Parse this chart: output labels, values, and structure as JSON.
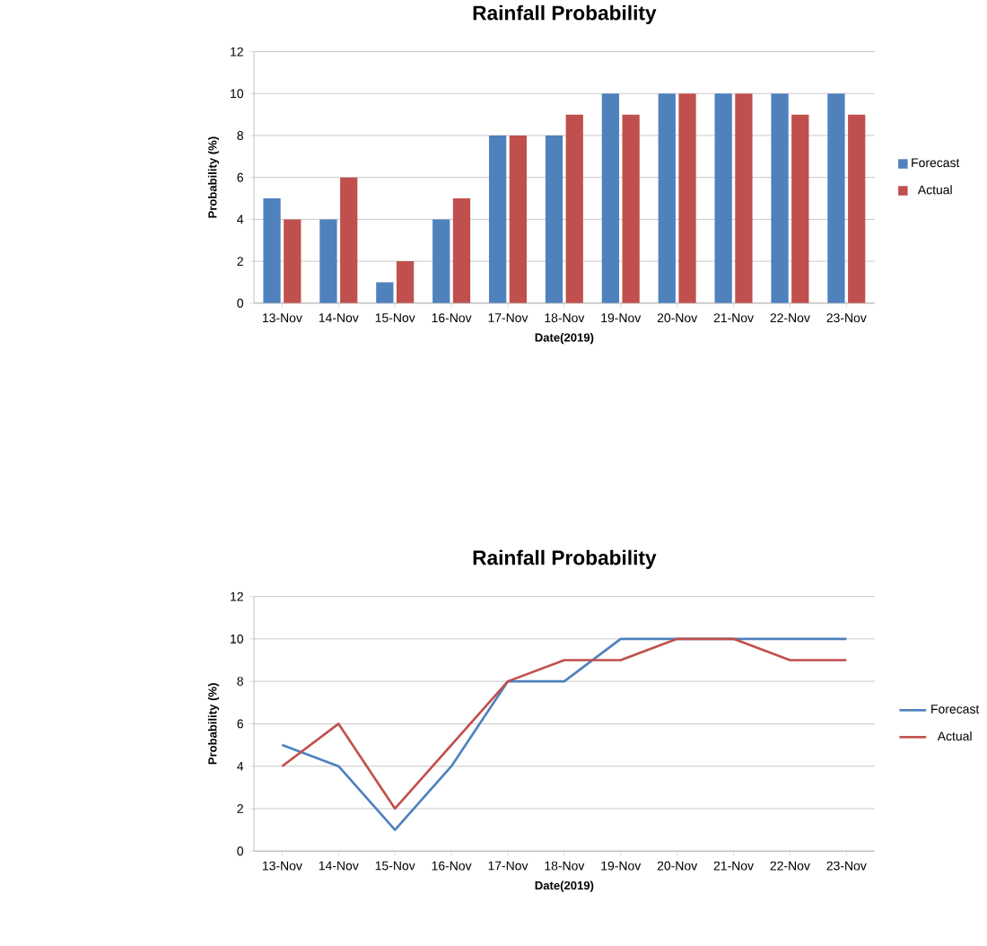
{
  "chart_data": [
    {
      "type": "bar",
      "title": "Rainfall Probability",
      "xlabel": "Date(2019)",
      "ylabel": "Probability (%)",
      "categories": [
        "13-Nov",
        "14-Nov",
        "15-Nov",
        "16-Nov",
        "17-Nov",
        "18-Nov",
        "19-Nov",
        "20-Nov",
        "21-Nov",
        "22-Nov",
        "23-Nov"
      ],
      "series": [
        {
          "name": "Forecast",
          "color": "#4f81bd",
          "values": [
            5,
            4,
            1,
            4,
            8,
            8,
            10,
            10,
            10,
            10,
            10
          ]
        },
        {
          "name": "Actual",
          "color": "#c0504d",
          "values": [
            4,
            6,
            2,
            5,
            8,
            9,
            9,
            10,
            10,
            9,
            9
          ]
        }
      ],
      "ylim": [
        0,
        12
      ],
      "yticks": [
        0,
        2,
        4,
        6,
        8,
        10,
        12
      ],
      "grid": "y",
      "legend": "right"
    },
    {
      "type": "line",
      "title": "Rainfall Probability",
      "xlabel": "Date(2019)",
      "ylabel": "Probability (%)",
      "categories": [
        "13-Nov",
        "14-Nov",
        "15-Nov",
        "16-Nov",
        "17-Nov",
        "18-Nov",
        "19-Nov",
        "20-Nov",
        "21-Nov",
        "22-Nov",
        "23-Nov"
      ],
      "series": [
        {
          "name": "Forecast",
          "color": "#4f81bd",
          "values": [
            5,
            4,
            1,
            4,
            8,
            8,
            10,
            10,
            10,
            10,
            10
          ]
        },
        {
          "name": "Actual",
          "color": "#c0504d",
          "values": [
            4,
            6,
            2,
            5,
            8,
            9,
            9,
            10,
            10,
            9,
            9
          ]
        }
      ],
      "ylim": [
        0,
        12
      ],
      "yticks": [
        0,
        2,
        4,
        6,
        8,
        10,
        12
      ],
      "grid": "y",
      "legend": "right",
      "marker": "none"
    }
  ]
}
